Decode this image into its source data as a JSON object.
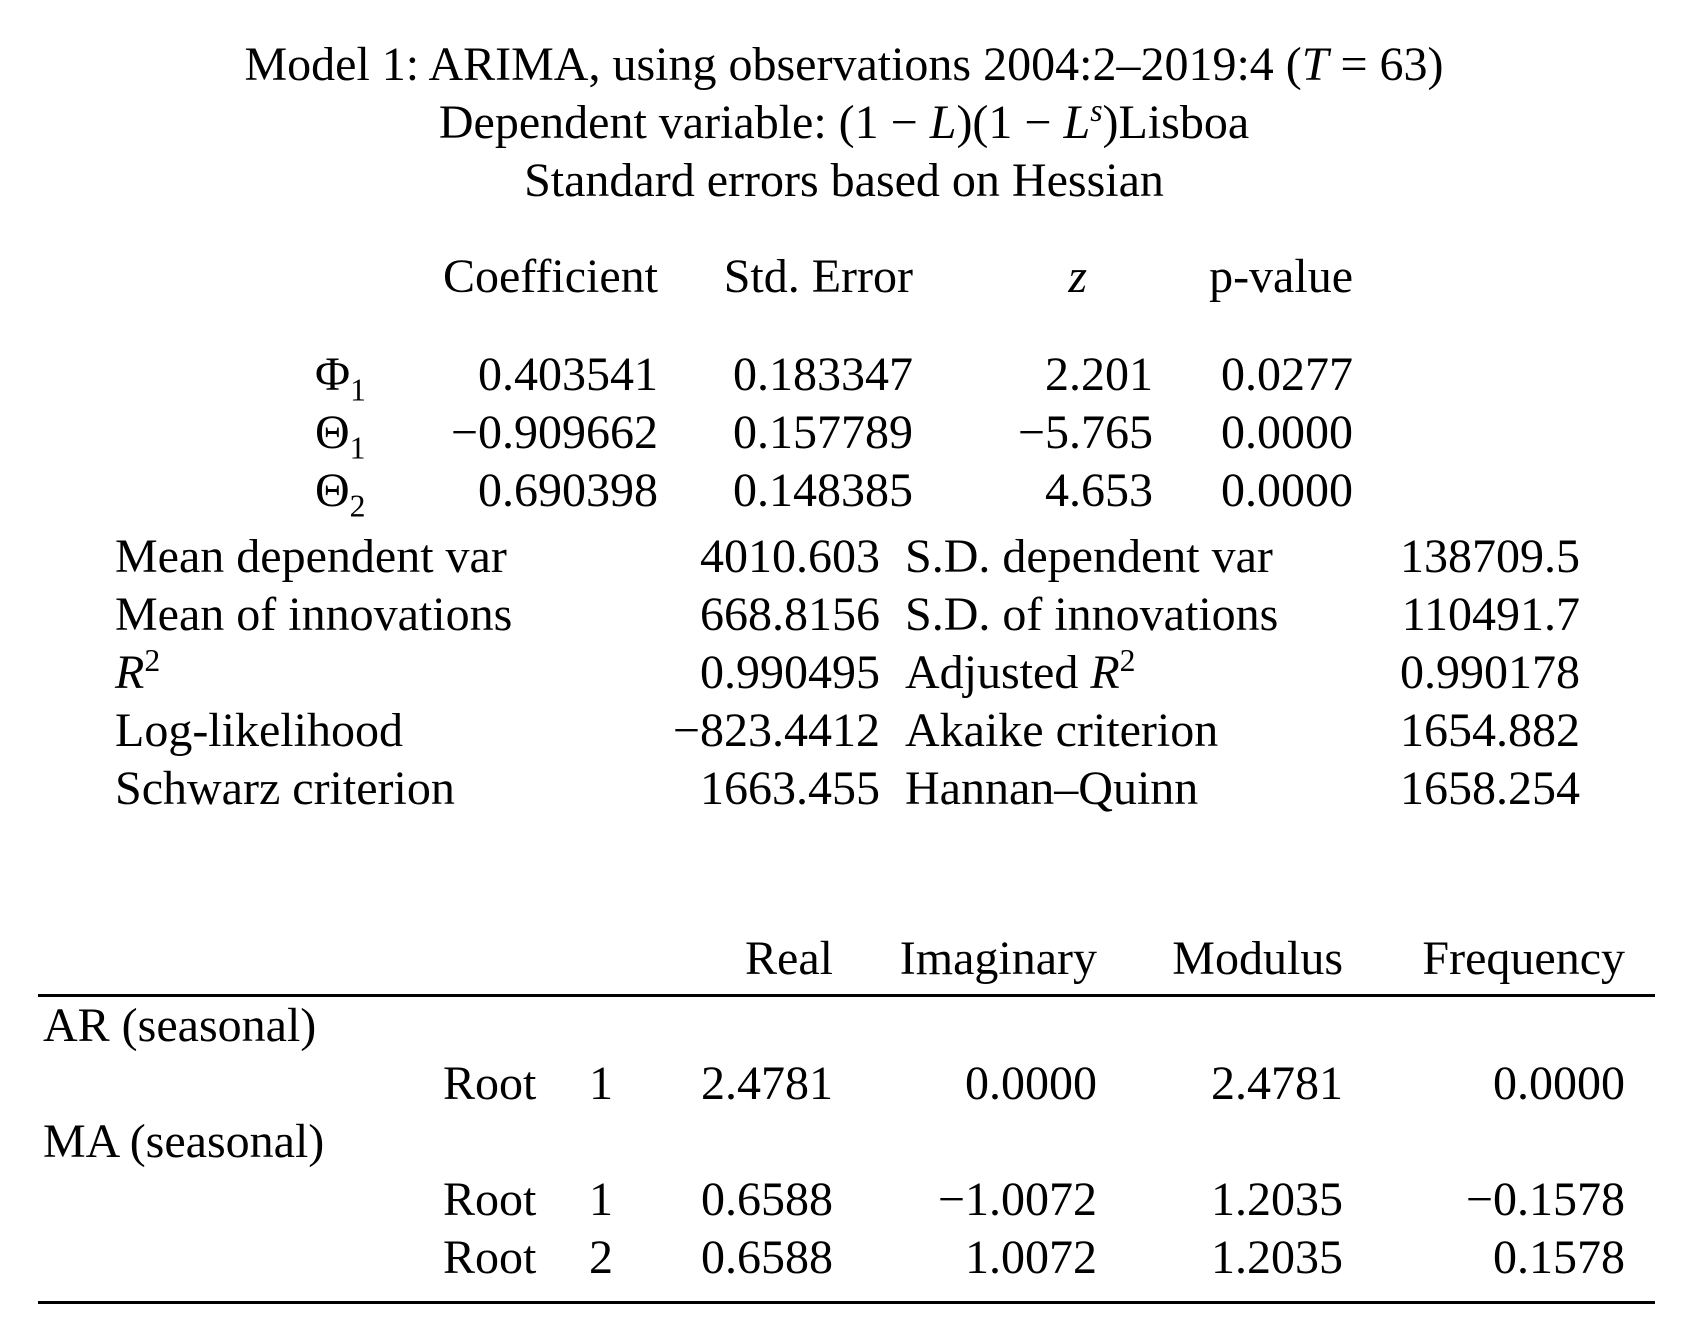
{
  "page": {
    "title_line1": {
      "pre": "Model 1: ARIMA, using observations 2004:2–2019:4 (",
      "t_var": "T",
      "post": " = 63)"
    },
    "title_line2": {
      "pre": "Dependent variable: (1 − ",
      "l1": "L",
      "mid": ")(1 − ",
      "l2": "L",
      "l2_sup": "s",
      "post": ")Lisboa"
    },
    "title_line3": "Standard errors based on Hessian"
  },
  "coef_table": {
    "headers": {
      "coefficient": "Coefficient",
      "std_error": "Std. Error",
      "z": "z",
      "p_value": "p-value"
    },
    "rows": [
      {
        "param": "Φ",
        "param_sub": "1",
        "coefficient": "0.403541",
        "std_error": "0.183347",
        "z": "2.201",
        "p_value": "0.0277"
      },
      {
        "param": "Θ",
        "param_sub": "1",
        "coefficient": "−0.909662",
        "std_error": "0.157789",
        "z": "−5.765",
        "p_value": "0.0000"
      },
      {
        "param": "Θ",
        "param_sub": "2",
        "coefficient": "0.690398",
        "std_error": "0.148385",
        "z": "4.653",
        "p_value": "0.0000"
      }
    ]
  },
  "stats": {
    "rows": [
      {
        "l_label": "Mean dependent var",
        "l_value": "4010.603",
        "r_label": "S.D. dependent var",
        "r_value": "138709.5"
      },
      {
        "l_label": "Mean of innovations",
        "l_value": "668.8156",
        "r_label": "S.D. of innovations",
        "r_value": "110491.7"
      },
      {
        "l_label_var": "R",
        "l_label_sup": "2",
        "l_value": "0.990495",
        "r_label_pre": "Adjusted ",
        "r_label_var": "R",
        "r_label_sup": "2",
        "r_value": "0.990178"
      },
      {
        "l_label": "Log-likelihood",
        "l_value": "−823.4412",
        "r_label": "Akaike criterion",
        "r_value": "1654.882"
      },
      {
        "l_label": "Schwarz criterion",
        "l_value": "1663.455",
        "r_label": "Hannan–Quinn",
        "r_value": "1658.254"
      }
    ]
  },
  "roots_table": {
    "headers": {
      "real": "Real",
      "imaginary": "Imaginary",
      "modulus": "Modulus",
      "frequency": "Frequency"
    },
    "sections": [
      {
        "label": "AR (seasonal)",
        "roots": [
          {
            "name": "Root",
            "index": "1",
            "real": "2.4781",
            "imaginary": "0.0000",
            "modulus": "2.4781",
            "frequency": "0.0000"
          }
        ]
      },
      {
        "label": "MA (seasonal)",
        "roots": [
          {
            "name": "Root",
            "index": "1",
            "real": "0.6588",
            "imaginary": "−1.0072",
            "modulus": "1.2035",
            "frequency": "−0.1578"
          },
          {
            "name": "Root",
            "index": "2",
            "real": "0.6588",
            "imaginary": "1.0072",
            "modulus": "1.2035",
            "frequency": "0.1578"
          }
        ]
      }
    ]
  }
}
